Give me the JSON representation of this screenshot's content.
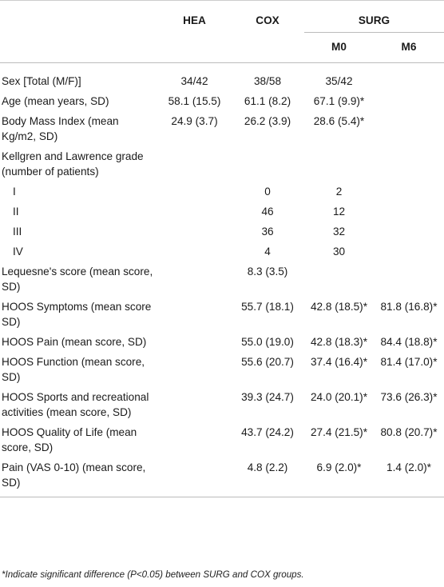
{
  "header": {
    "col_hea": "HEA",
    "col_cox": "COX",
    "col_surg": "SURG",
    "col_m0": "M0",
    "col_m6": "M6"
  },
  "rows": [
    {
      "label": "Sex [Total (M/F)]",
      "hea": "34/42",
      "cox": "38/58",
      "m0": "35/42",
      "m6": ""
    },
    {
      "label": "Age (mean years, SD)",
      "hea": "58.1 (15.5)",
      "cox": "61.1 (8.2)",
      "m0": "67.1 (9.9)*",
      "m6": ""
    },
    {
      "label": "Body Mass Index (mean Kg/m2, SD)",
      "hea": "24.9 (3.7)",
      "cox": "26.2 (3.9)",
      "m0": "28.6 (5.4)*",
      "m6": ""
    },
    {
      "label": "Kellgren and Lawrence grade (number of patients)",
      "hea": "",
      "cox": "",
      "m0": "",
      "m6": ""
    },
    {
      "label": "I",
      "hea": "",
      "cox": "0",
      "m0": "2",
      "m6": ""
    },
    {
      "label": "II",
      "hea": "",
      "cox": "46",
      "m0": "12",
      "m6": ""
    },
    {
      "label": "III",
      "hea": "",
      "cox": "36",
      "m0": "32",
      "m6": ""
    },
    {
      "label": "IV",
      "hea": "",
      "cox": "4",
      "m0": "30",
      "m6": ""
    },
    {
      "label": "Lequesne's score (mean score, SD)",
      "hea": "",
      "cox": "8.3 (3.5)",
      "m0": "",
      "m6": ""
    },
    {
      "label": "HOOS Symptoms (mean score SD)",
      "hea": "",
      "cox": "55.7 (18.1)",
      "m0": "42.8 (18.5)*",
      "m6": "81.8 (16.8)*"
    },
    {
      "label": "HOOS Pain (mean score, SD)",
      "hea": "",
      "cox": "55.0 (19.0)",
      "m0": "42.8 (18.3)*",
      "m6": "84.4 (18.8)*"
    },
    {
      "label": "HOOS Function (mean score, SD)",
      "hea": "",
      "cox": "55.6 (20.7)",
      "m0": "37.4 (16.4)*",
      "m6": "81.4 (17.0)*"
    },
    {
      "label": "HOOS Sports and recreational activities (mean score, SD)",
      "hea": "",
      "cox": "39.3 (24.7)",
      "m0": "24.0 (20.1)*",
      "m6": "73.6 (26.3)*"
    },
    {
      "label": "HOOS Quality of Life (mean score, SD)",
      "hea": "",
      "cox": "43.7 (24.2)",
      "m0": "27.4 (21.5)*",
      "m6": "80.8 (20.7)*"
    },
    {
      "label": "Pain (VAS 0-10) (mean score, SD)",
      "hea": "",
      "cox": "4.8 (2.2)",
      "m0": "6.9 (2.0)*",
      "m6": "1.4 (2.0)*"
    }
  ],
  "footnote": "*Indicate significant difference (P<0.05) between SURG and COX groups."
}
